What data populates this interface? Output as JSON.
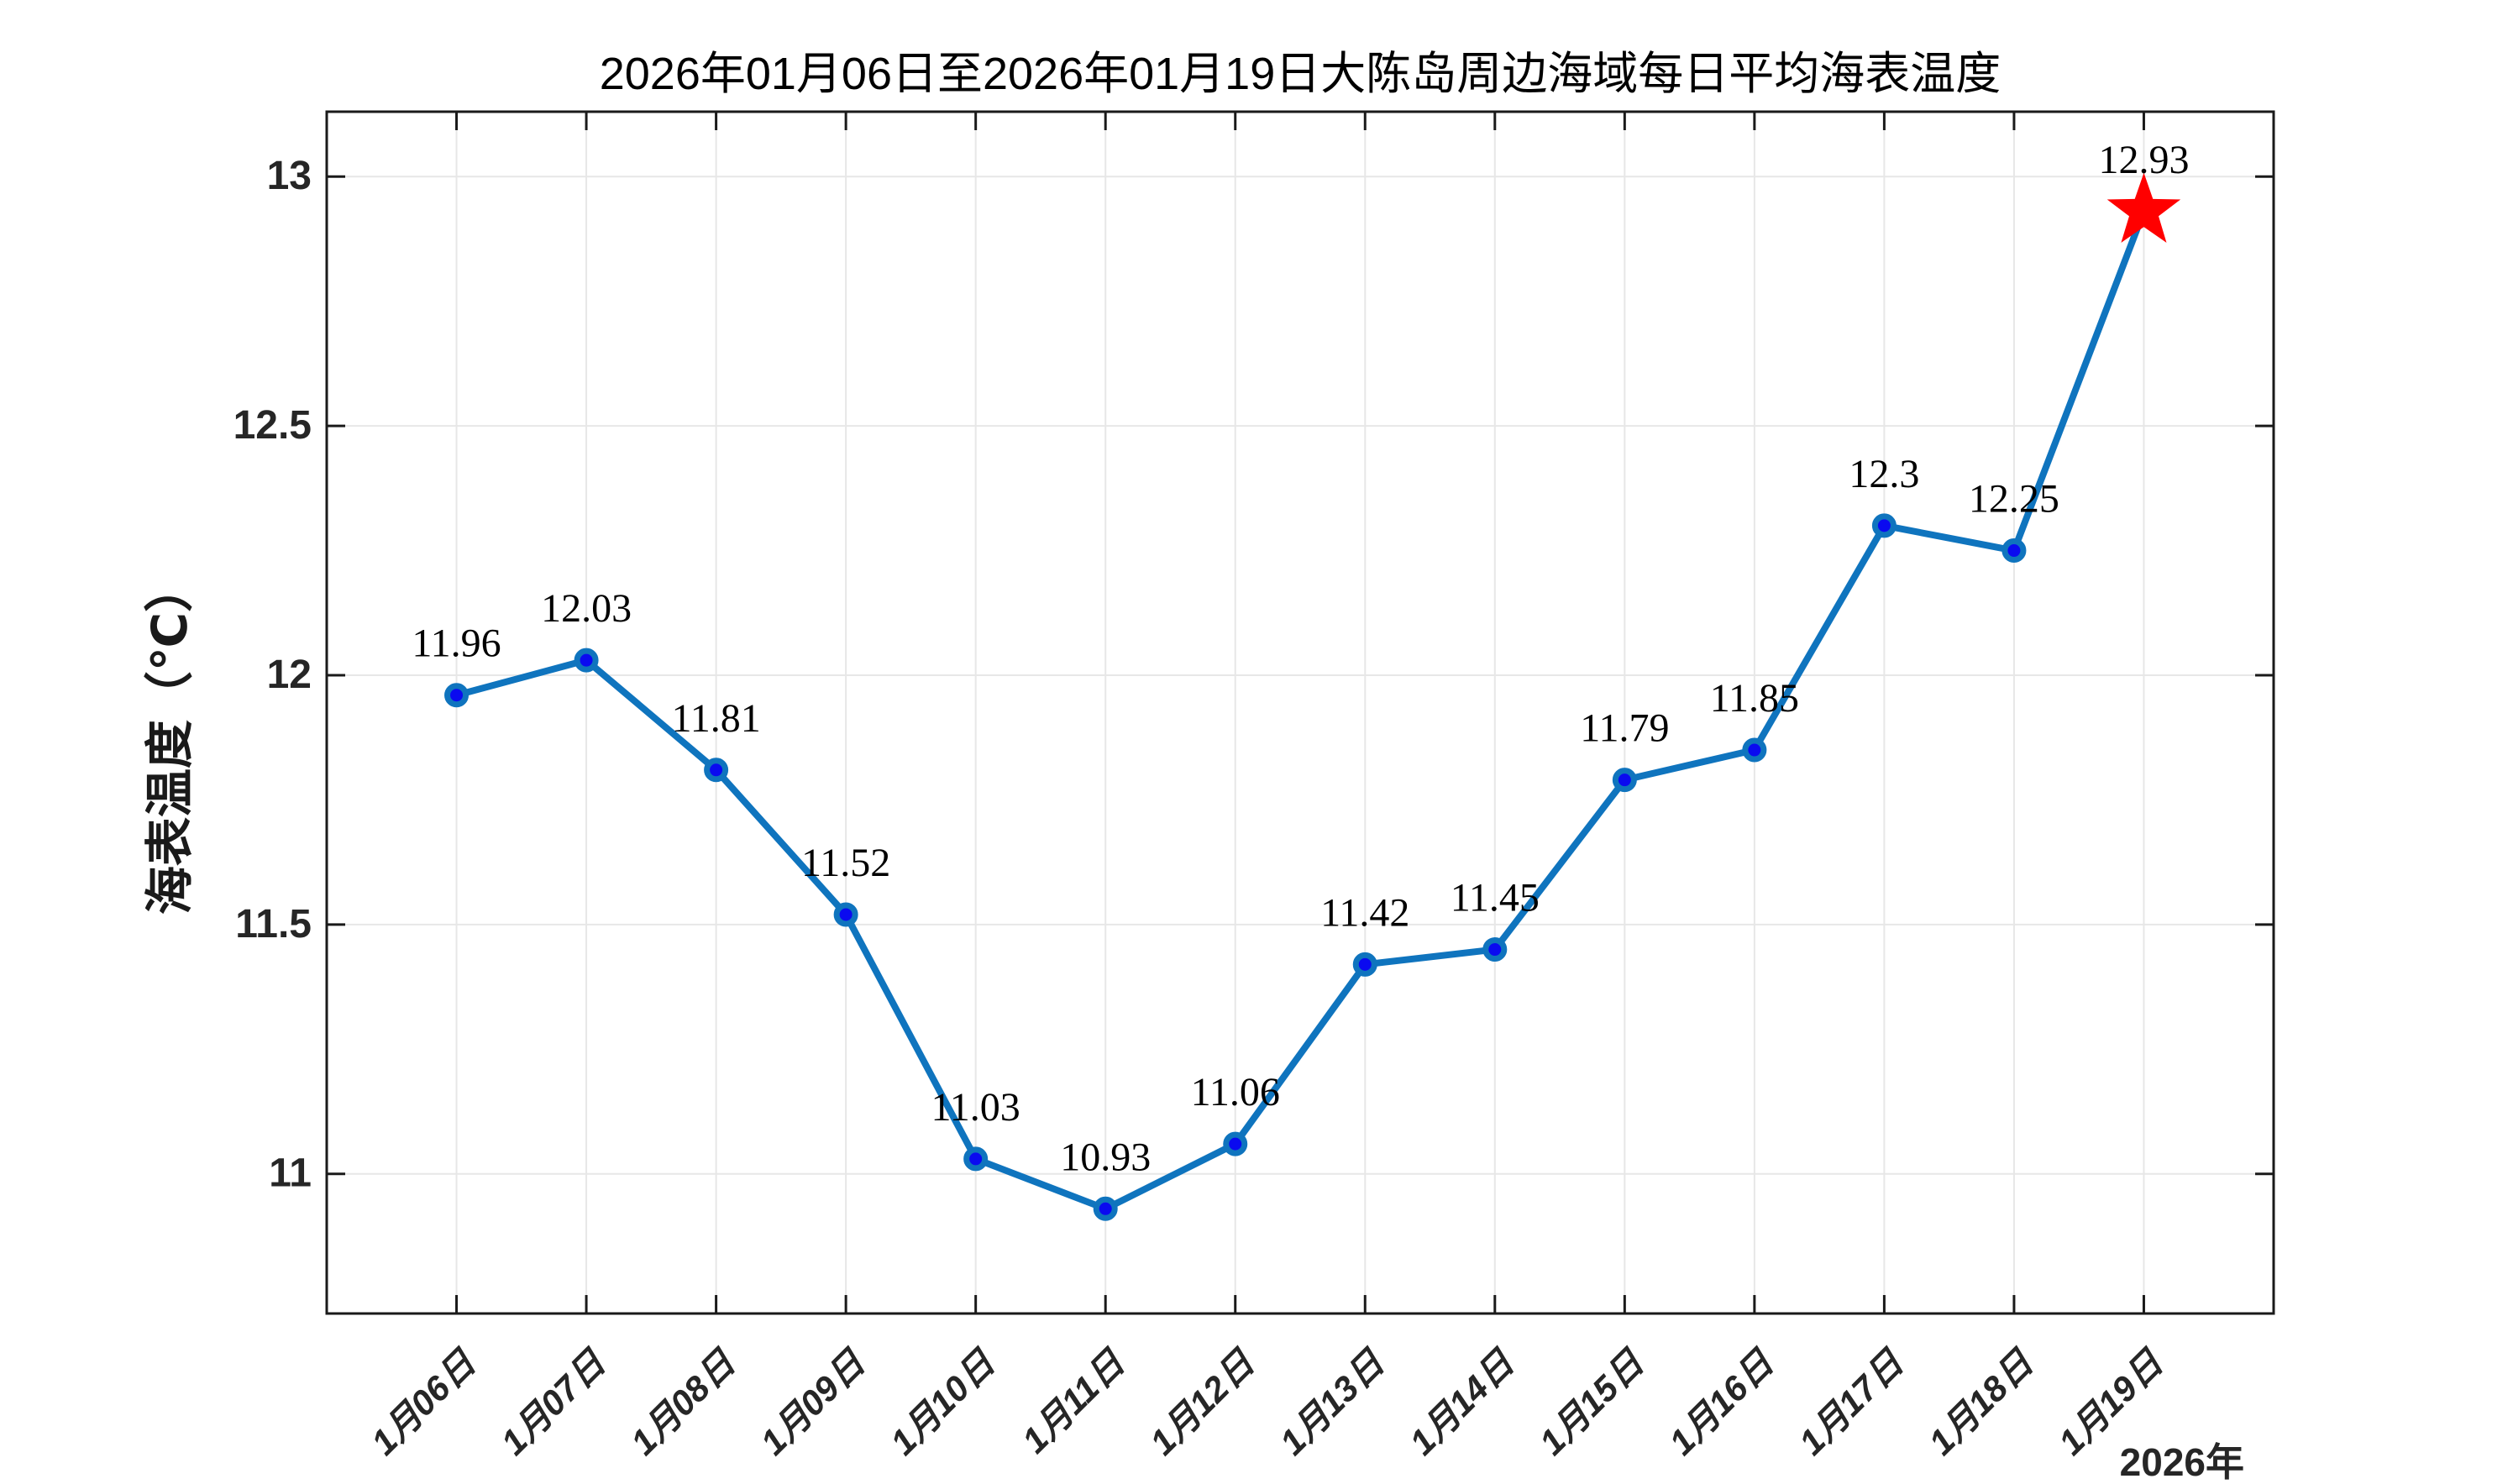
{
  "chart_data": {
    "type": "line",
    "title": "2026年01月06日至2026年01月19日大陈岛周边海域每日平均海表温度",
    "ylabel": "海表温度（℃）",
    "xlabel": "",
    "year_label": "2026年",
    "categories": [
      "1月06日",
      "1月07日",
      "1月08日",
      "1月09日",
      "1月10日",
      "1月11日",
      "1月12日",
      "1月13日",
      "1月14日",
      "1月15日",
      "1月16日",
      "1月17日",
      "1月18日",
      "1月19日"
    ],
    "values": [
      11.96,
      12.03,
      11.81,
      11.52,
      11.03,
      10.93,
      11.06,
      11.42,
      11.45,
      11.79,
      11.85,
      12.3,
      12.25,
      12.93
    ],
    "point_labels": [
      "11.96",
      "12.03",
      "11.81",
      "11.52",
      "11.03",
      "10.93",
      "11.06",
      "11.42",
      "11.45",
      "11.79",
      "11.85",
      "12.3",
      "12.25",
      "12.93"
    ],
    "yticks": [
      11,
      11.5,
      12,
      12.5,
      13
    ],
    "ytick_labels": [
      "11",
      "11.5",
      "12",
      "12.5",
      "13"
    ],
    "ylim": [
      10.72,
      13.13
    ],
    "grid": true,
    "box": true,
    "highlight": {
      "index": 13,
      "marker": "star",
      "color": "#ff0000"
    },
    "colors": {
      "line": "#0f74be",
      "marker_face": "#0a0af0",
      "marker_edge": "#0f74be",
      "star": "#ff0000",
      "grid": "#e7e7e7",
      "axis": "#1a1a1a",
      "tick_label": "#262626",
      "data_label": "#000000",
      "background": "#ffffff"
    }
  }
}
